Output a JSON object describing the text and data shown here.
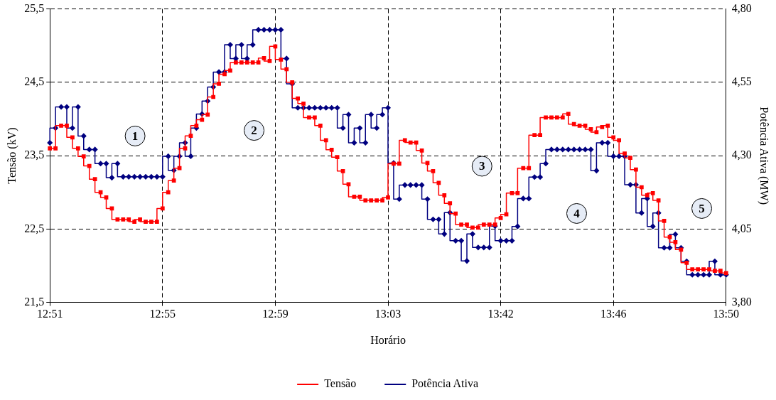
{
  "chart_data": {
    "type": "step",
    "xlabel": "Horário",
    "ylabel": "Tensão (kV)",
    "y2label": "Potência Ativa (MW)",
    "categories": [
      "12:51",
      null,
      null,
      null,
      null,
      null,
      null,
      null,
      null,
      null,
      null,
      null,
      null,
      null,
      null,
      null,
      null,
      null,
      null,
      null,
      "12:55",
      null,
      null,
      null,
      null,
      null,
      null,
      null,
      null,
      null,
      null,
      null,
      null,
      null,
      null,
      null,
      null,
      null,
      null,
      null,
      "12:59",
      null,
      null,
      null,
      null,
      null,
      null,
      null,
      null,
      null,
      null,
      null,
      null,
      null,
      null,
      null,
      null,
      null,
      null,
      null,
      "13:03",
      null,
      null,
      null,
      null,
      null,
      null,
      null,
      null,
      null,
      null,
      null,
      null,
      null,
      null,
      null,
      null,
      null,
      null,
      null,
      "13:42",
      null,
      null,
      null,
      null,
      null,
      null,
      null,
      null,
      null,
      null,
      null,
      null,
      null,
      null,
      null,
      null,
      null,
      null,
      null,
      "13:46",
      null,
      null,
      null,
      null,
      null,
      null,
      null,
      null,
      null,
      null,
      null,
      null,
      null,
      null,
      null,
      null,
      null,
      null,
      null,
      "13:50"
    ],
    "ylim": [
      21.5,
      25.5
    ],
    "yticks": [
      {
        "value": 21.5,
        "label": "21,5"
      },
      {
        "value": 22.5,
        "label": "22,5"
      },
      {
        "value": 23.5,
        "label": "23,5"
      },
      {
        "value": 24.5,
        "label": "24,5"
      },
      {
        "value": 25.5,
        "label": "25,5"
      }
    ],
    "y2lim": [
      3.8,
      4.8
    ],
    "y2ticks": [
      {
        "value": 3.8,
        "label": "3,80"
      },
      {
        "value": 4.05,
        "label": "4,05"
      },
      {
        "value": 4.3,
        "label": "4,30"
      },
      {
        "value": 4.55,
        "label": "4,55"
      },
      {
        "value": 4.8,
        "label": "4,80"
      }
    ],
    "grid": true,
    "legend": "bottom",
    "annotations": [
      "1",
      "2",
      "3",
      "4",
      "5"
    ],
    "series": [
      {
        "name": "Tensão",
        "color": "#ff0000",
        "marker": "square",
        "values": [
          23.6,
          23.6,
          23.91,
          23.91,
          23.75,
          23.6,
          23.49,
          23.36,
          23.18,
          23.0,
          22.93,
          22.78,
          22.63,
          22.63,
          22.63,
          22.6,
          22.63,
          22.6,
          22.6,
          22.6,
          22.78,
          23.0,
          23.16,
          23.33,
          23.6,
          23.77,
          23.91,
          23.99,
          24.06,
          24.3,
          24.48,
          24.61,
          24.66,
          24.77,
          24.77,
          24.77,
          24.77,
          24.77,
          24.83,
          24.79,
          24.99,
          24.81,
          24.68,
          24.5,
          24.28,
          24.21,
          24.02,
          24.02,
          23.91,
          23.71,
          23.58,
          23.48,
          23.29,
          23.11,
          22.94,
          22.94,
          22.89,
          22.89,
          22.89,
          22.89,
          22.93,
          23.39,
          23.39,
          23.71,
          23.68,
          23.68,
          23.57,
          23.4,
          23.29,
          23.13,
          22.96,
          22.85,
          22.71,
          22.56,
          22.56,
          22.52,
          22.52,
          22.56,
          22.56,
          22.56,
          22.65,
          22.7,
          22.99,
          22.99,
          23.33,
          23.33,
          23.78,
          23.78,
          24.02,
          24.02,
          24.02,
          24.02,
          24.07,
          23.93,
          23.91,
          23.91,
          23.86,
          23.82,
          23.89,
          23.91,
          23.75,
          23.71,
          23.53,
          23.47,
          23.31,
          23.07,
          22.96,
          22.99,
          22.89,
          22.61,
          22.39,
          22.32,
          22.22,
          22.04,
          21.95,
          21.95,
          21.95,
          21.95,
          21.93,
          21.93,
          21.9
        ]
      },
      {
        "name": "Potência Ativa",
        "color": "#000080",
        "marker": "diamond",
        "axis": "y2",
        "values": [
          4.344,
          4.394,
          4.466,
          4.466,
          4.394,
          4.466,
          4.367,
          4.321,
          4.321,
          4.273,
          4.273,
          4.225,
          4.273,
          4.228,
          4.228,
          4.228,
          4.228,
          4.228,
          4.228,
          4.228,
          4.228,
          4.298,
          4.25,
          4.298,
          4.344,
          4.298,
          4.394,
          4.442,
          4.486,
          4.534,
          4.585,
          4.585,
          4.678,
          4.631,
          4.678,
          4.631,
          4.678,
          4.729,
          4.729,
          4.729,
          4.729,
          4.729,
          4.631,
          4.545,
          4.463,
          4.463,
          4.463,
          4.463,
          4.463,
          4.463,
          4.463,
          4.463,
          4.394,
          4.44,
          4.344,
          4.394,
          4.344,
          4.44,
          4.394,
          4.44,
          4.463,
          4.275,
          4.152,
          4.2,
          4.2,
          4.2,
          4.2,
          4.152,
          4.083,
          4.083,
          4.033,
          4.106,
          4.01,
          4.01,
          3.941,
          4.033,
          3.987,
          3.987,
          3.987,
          4.06,
          4.01,
          4.01,
          4.01,
          4.059,
          4.154,
          4.154,
          4.227,
          4.227,
          4.273,
          4.321,
          4.321,
          4.321,
          4.321,
          4.321,
          4.321,
          4.321,
          4.321,
          4.249,
          4.344,
          4.344,
          4.298,
          4.298,
          4.298,
          4.201,
          4.201,
          4.105,
          4.154,
          4.059,
          4.105,
          3.986,
          3.986,
          4.032,
          3.986,
          3.94,
          3.894,
          3.894,
          3.894,
          3.894,
          3.94,
          3.894,
          3.894
        ]
      }
    ]
  }
}
